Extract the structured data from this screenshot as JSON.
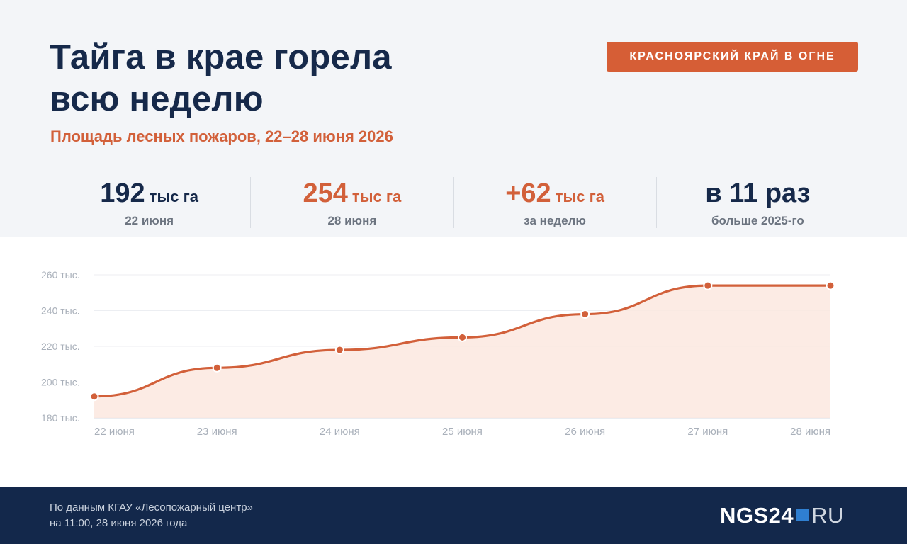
{
  "header": {
    "title_lines": [
      "Тайга в крае горела",
      "всю неделю"
    ],
    "subtitle": "Площадь лесных пожаров, 22–28 июня 2026",
    "badge": "КРАСНОЯРСКИЙ КРАЙ В ОГНЕ"
  },
  "stats": [
    {
      "value": "192",
      "unit": "тыс га",
      "label": "22 июня",
      "color": "navy"
    },
    {
      "value": "254",
      "unit": "тыс га",
      "label": "28 июня",
      "color": "orange"
    },
    {
      "value": "+62",
      "unit": "тыс га",
      "label": "за неделю",
      "color": "orange"
    },
    {
      "value": "в 11 раз",
      "unit": "",
      "label": "больше 2025-го",
      "color": "navy"
    }
  ],
  "chart_data": {
    "type": "area",
    "categories": [
      "22 июня",
      "23 июня",
      "24 июня",
      "25 июня",
      "26 июня",
      "27 июня",
      "28 июня"
    ],
    "values": [
      192,
      208,
      218,
      225,
      238,
      254,
      254
    ],
    "ylim": [
      180,
      260
    ],
    "yticks": [
      180,
      200,
      220,
      240,
      260
    ],
    "ytick_labels": [
      "180 тыс.",
      "200 тыс.",
      "220 тыс.",
      "240 тыс.",
      "260 тыс."
    ],
    "grid": true,
    "line_color": "#d2603a",
    "fill_color": "#fbe8df"
  },
  "footer": {
    "source_lines": [
      "По данным КГАУ «Лесопожарный центр»",
      "на 11:00, 28 июня 2026 года"
    ],
    "logo_main": "NGS24",
    "logo_suffix": "RU"
  }
}
